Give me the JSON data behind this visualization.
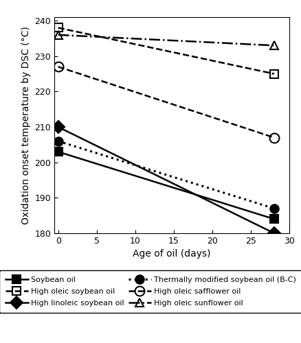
{
  "title": "",
  "xlabel": "Age of oil (days)",
  "ylabel": "Oxidation onset temperature by DSC (°C)",
  "xlim": [
    -0.5,
    30
  ],
  "ylim": [
    180,
    241
  ],
  "xticks": [
    0,
    5,
    10,
    15,
    20,
    25,
    30
  ],
  "yticks": [
    180,
    190,
    200,
    210,
    220,
    230,
    240
  ],
  "series": [
    {
      "label": "Soybean oil",
      "x": [
        0,
        28
      ],
      "y": [
        203,
        184
      ],
      "color": "black",
      "linestyle": "-",
      "marker": "s",
      "markersize": 9,
      "linewidth": 1.8,
      "fillstyle": "full"
    },
    {
      "label": "High linoleic soybean oil",
      "x": [
        0,
        28
      ],
      "y": [
        210,
        180
      ],
      "color": "black",
      "linestyle": "-",
      "marker": "D",
      "markersize": 9,
      "linewidth": 1.8,
      "fillstyle": "full"
    },
    {
      "label": "High oleic safflower oil",
      "x": [
        0,
        28
      ],
      "y": [
        227,
        207
      ],
      "color": "black",
      "linestyle": "--",
      "marker": "o",
      "markersize": 10,
      "linewidth": 1.8,
      "fillstyle": "none"
    },
    {
      "label": "High oleic soybean oil",
      "x": [
        0,
        28
      ],
      "y": [
        238,
        225
      ],
      "color": "black",
      "linestyle": "--",
      "marker": "s",
      "markersize": 9,
      "linewidth": 1.8,
      "fillstyle": "none"
    },
    {
      "label": "Thermally modified soybean oil (B-C)",
      "x": [
        0,
        28
      ],
      "y": [
        206,
        187
      ],
      "color": "black",
      "linestyle": ":",
      "marker": "o",
      "markersize": 9,
      "linewidth": 2.2,
      "fillstyle": "full"
    },
    {
      "label": "High oleic sunflower oil",
      "x": [
        0,
        28
      ],
      "y": [
        236,
        233
      ],
      "color": "black",
      "linestyle": "-.",
      "marker": "^",
      "markersize": 9,
      "linewidth": 1.8,
      "fillstyle": "none"
    }
  ],
  "legend_order": [
    0,
    3,
    1,
    4,
    2,
    5
  ],
  "figsize": [
    4.39,
    5.0
  ],
  "dpi": 100
}
